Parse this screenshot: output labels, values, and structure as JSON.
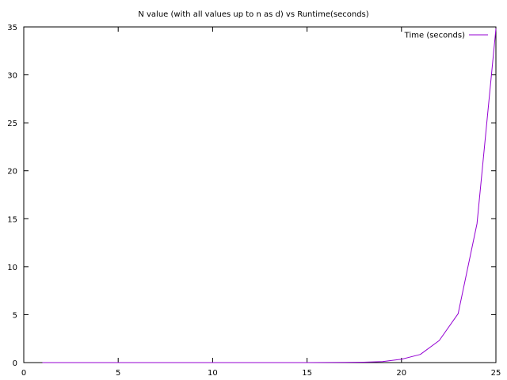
{
  "chart_data": {
    "type": "line",
    "title": "N value (with all values up to n as d) vs Runtime(seconds)",
    "xlabel": "",
    "ylabel": "",
    "xlim": [
      0,
      25
    ],
    "ylim": [
      0,
      35
    ],
    "x_ticks": [
      0,
      5,
      10,
      15,
      20,
      25
    ],
    "y_ticks": [
      0,
      5,
      10,
      15,
      20,
      25,
      30,
      35
    ],
    "x_tick_labels": [
      "0",
      "5",
      "10",
      "15",
      "20",
      "25"
    ],
    "y_tick_labels": [
      "0",
      "5",
      "10",
      "15",
      "20",
      "25",
      "30",
      "35"
    ],
    "grid": false,
    "legend_position": "top-right",
    "series": [
      {
        "name": "Time (seconds)",
        "color": "#9400d3",
        "x": [
          1,
          2,
          3,
          4,
          5,
          6,
          7,
          8,
          9,
          10,
          11,
          12,
          13,
          14,
          15,
          16,
          17,
          18,
          19,
          20,
          21,
          22,
          23,
          24,
          25
        ],
        "y": [
          0,
          0,
          0,
          0,
          0,
          0,
          0,
          0,
          0,
          0,
          0,
          0,
          0,
          0,
          0,
          0.01,
          0.02,
          0.04,
          0.1,
          0.35,
          0.85,
          2.3,
          5.1,
          14.5,
          34.8
        ]
      }
    ]
  }
}
